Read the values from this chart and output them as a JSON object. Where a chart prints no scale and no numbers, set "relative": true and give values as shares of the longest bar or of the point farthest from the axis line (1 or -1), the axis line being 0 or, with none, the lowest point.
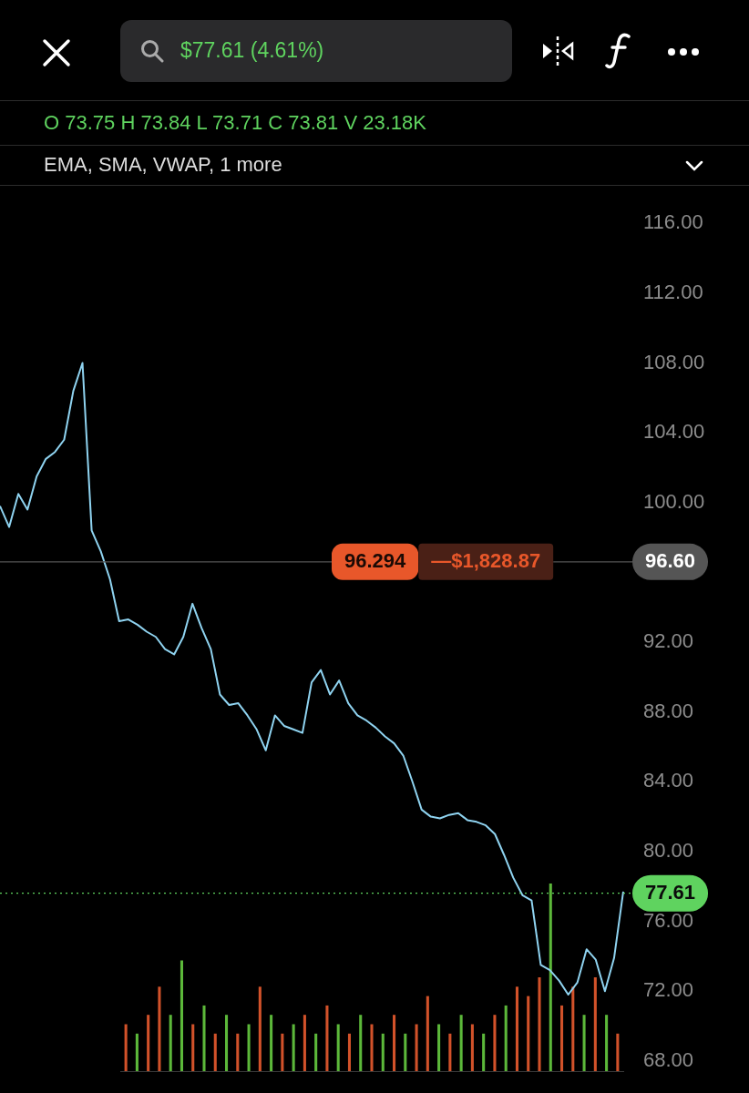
{
  "chart_data": [
    {
      "type": "line",
      "title": "$77.61 (4.61%)",
      "categories": [
        null,
        null,
        null,
        null,
        null,
        null,
        null,
        null,
        null,
        null,
        null,
        null,
        null,
        null,
        null,
        null,
        null,
        null,
        null,
        null,
        null,
        null,
        null,
        null,
        null,
        null,
        null,
        null,
        null,
        null,
        null,
        null,
        null,
        null,
        null,
        null,
        null,
        null,
        null,
        null,
        null,
        null,
        null,
        null,
        null,
        null,
        null,
        null,
        null,
        null,
        null,
        null,
        null,
        null,
        null,
        null,
        null,
        null,
        null,
        null,
        null,
        null,
        null,
        null,
        null,
        null,
        null,
        null,
        null
      ],
      "series": [
        {
          "color": "#8fd3f0",
          "values": [
            99.8,
            98.6,
            100.5,
            99.6,
            101.5,
            102.5,
            102.9,
            103.6,
            106.4,
            108.0,
            98.4,
            97.2,
            95.6,
            93.2,
            93.3,
            93.0,
            92.6,
            92.3,
            91.6,
            91.3,
            92.3,
            94.2,
            92.8,
            91.6,
            89.0,
            88.4,
            88.5,
            87.8,
            87.0,
            85.8,
            87.8,
            87.2,
            87.0,
            86.8,
            89.7,
            90.4,
            89.0,
            89.8,
            88.5,
            87.8,
            87.5,
            87.1,
            86.6,
            86.2,
            85.5,
            84.0,
            82.4,
            82.0,
            81.9,
            82.1,
            82.2,
            81.8,
            81.7,
            81.5,
            81.0,
            79.8,
            78.5,
            77.5,
            77.2,
            73.5,
            73.2,
            72.6,
            71.8,
            72.5,
            74.4,
            73.8,
            72.0,
            73.9,
            77.7
          ]
        }
      ],
      "ylim": [
        68,
        116
      ],
      "yticks": [
        {
          "value": 68,
          "label": "68.00"
        },
        {
          "value": 72,
          "label": "72.00"
        },
        {
          "value": 76,
          "label": "76.00"
        },
        {
          "value": 80,
          "label": "80.00"
        },
        {
          "value": 84,
          "label": "84.00"
        },
        {
          "value": 88,
          "label": "88.00"
        },
        {
          "value": 92,
          "label": "92.00"
        },
        {
          "value": 100,
          "label": "100.00"
        },
        {
          "value": 104,
          "label": "104.00"
        },
        {
          "value": 108,
          "label": "108.00"
        },
        {
          "value": 112,
          "label": "112.00"
        },
        {
          "value": 116,
          "label": "116.00"
        }
      ],
      "ref_lines": [
        {
          "axis": "y",
          "value": 96.6,
          "label": "96.60",
          "color": "#555555",
          "line_style": "solid"
        },
        {
          "axis": "y",
          "value": 77.61,
          "label": "77.61",
          "color": "#5fd35f",
          "line_style": "dotted"
        }
      ],
      "annotations": [
        "O 73.75 H 73.84 L 73.71 C 73.81 V 23.18K",
        "EMA, SMA, VWAP, 1 more",
        {
          "text": "96.294",
          "y": 96.6
        },
        {
          "text": "—$1,828.87",
          "y": 96.6
        }
      ],
      "tick_labels": "y",
      "grid": false,
      "legend": false,
      "marker": "none",
      "line_style": "solid"
    },
    {
      "type": "bar",
      "relative": true,
      "categories": [
        null,
        null,
        null,
        null,
        null,
        null,
        null,
        null,
        null,
        null,
        null,
        null,
        null,
        null,
        null,
        null,
        null,
        null,
        null,
        null,
        null,
        null,
        null,
        null,
        null,
        null,
        null,
        null,
        null,
        null,
        null,
        null,
        null,
        null,
        null,
        null,
        null,
        null,
        null,
        null,
        null,
        null,
        null,
        null,
        null
      ],
      "values": [
        0.25,
        0.2,
        0.3,
        0.45,
        0.3,
        0.59,
        0.25,
        0.35,
        0.2,
        0.3,
        0.2,
        0.25,
        0.45,
        0.3,
        0.2,
        0.25,
        0.3,
        0.2,
        0.35,
        0.25,
        0.2,
        0.3,
        0.25,
        0.2,
        0.3,
        0.2,
        0.25,
        0.4,
        0.25,
        0.2,
        0.3,
        0.25,
        0.2,
        0.3,
        0.35,
        0.45,
        0.4,
        0.5,
        1.0,
        0.35,
        0.45,
        0.3,
        0.5,
        0.3,
        0.2
      ],
      "colors": [
        "#d2522a",
        "#5cb83a",
        "#d2522a",
        "#d2522a",
        "#5cb83a",
        "#5cb83a",
        "#d2522a",
        "#5cb83a",
        "#d2522a",
        "#5cb83a",
        "#d2522a",
        "#5cb83a",
        "#d2522a",
        "#5cb83a",
        "#d2522a",
        "#5cb83a",
        "#d2522a",
        "#5cb83a",
        "#d2522a",
        "#5cb83a",
        "#d2522a",
        "#5cb83a",
        "#d2522a",
        "#5cb83a",
        "#d2522a",
        "#5cb83a",
        "#d2522a",
        "#d2522a",
        "#5cb83a",
        "#d2522a",
        "#5cb83a",
        "#d2522a",
        "#5cb83a",
        "#d2522a",
        "#5cb83a",
        "#d2522a",
        "#d2522a",
        "#d2522a",
        "#5cb83a",
        "#d2522a",
        "#d2522a",
        "#5cb83a",
        "#d2522a",
        "#5cb83a",
        "#d2522a"
      ],
      "legend": false,
      "grid": false
    }
  ]
}
